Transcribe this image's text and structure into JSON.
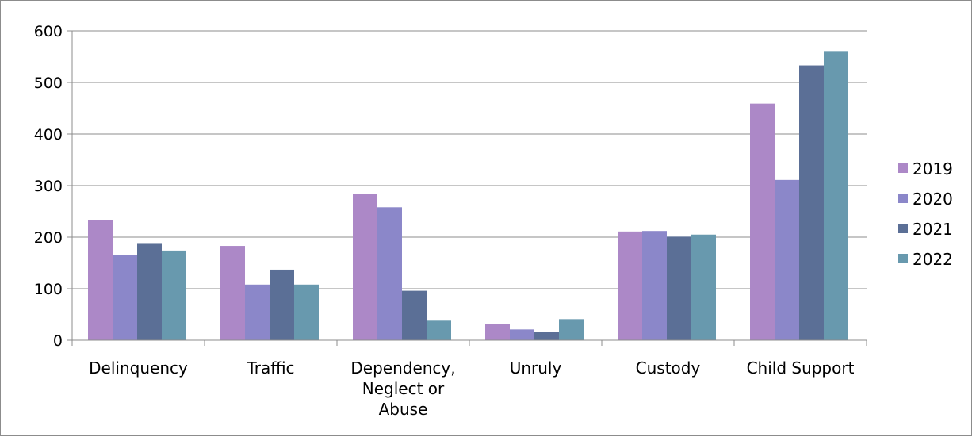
{
  "chart_data": {
    "type": "bar",
    "categories": [
      "Delinquency",
      "Traffic",
      "Dependency, Neglect or Abuse",
      "Unruly",
      "Custody",
      "Child Support"
    ],
    "category_label_lines": [
      [
        "Delinquency"
      ],
      [
        "Traffic"
      ],
      [
        "Dependency,",
        "Neglect or",
        "Abuse"
      ],
      [
        "Unruly"
      ],
      [
        "Custody"
      ],
      [
        "Child Support"
      ]
    ],
    "series": [
      {
        "name": "2019",
        "color": "#ac88c7",
        "values": [
          233,
          183,
          284,
          32,
          211,
          459
        ]
      },
      {
        "name": "2020",
        "color": "#8b87c9",
        "values": [
          166,
          108,
          258,
          21,
          212,
          311
        ]
      },
      {
        "name": "2021",
        "color": "#5b6f96",
        "values": [
          187,
          137,
          96,
          16,
          201,
          533
        ]
      },
      {
        "name": "2022",
        "color": "#6899ae",
        "values": [
          174,
          108,
          38,
          41,
          205,
          561
        ]
      }
    ],
    "ylim": [
      0,
      600
    ],
    "yticks": [
      "0",
      "100",
      "200",
      "300",
      "400",
      "500",
      "600"
    ],
    "title": "",
    "xlabel": "",
    "ylabel": "",
    "grid": true,
    "legend": "right"
  }
}
